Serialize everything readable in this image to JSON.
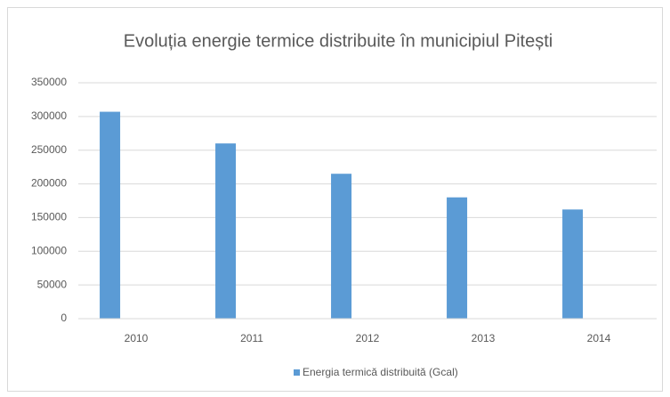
{
  "chart_data": {
    "type": "bar",
    "title": "Evoluția energie termice distribuite în municipiul Pitești",
    "categories": [
      "2010",
      "2011",
      "2012",
      "2013",
      "2014"
    ],
    "series": [
      {
        "name": "Energia termică distribuită (Gcal)",
        "color": "#5b9bd5",
        "values": [
          307000,
          260000,
          215000,
          180000,
          162000
        ]
      }
    ],
    "ylim": [
      0,
      350000
    ],
    "yticks": [
      0,
      50000,
      100000,
      150000,
      200000,
      250000,
      300000,
      350000
    ],
    "grid": true,
    "legend": "bottom"
  }
}
